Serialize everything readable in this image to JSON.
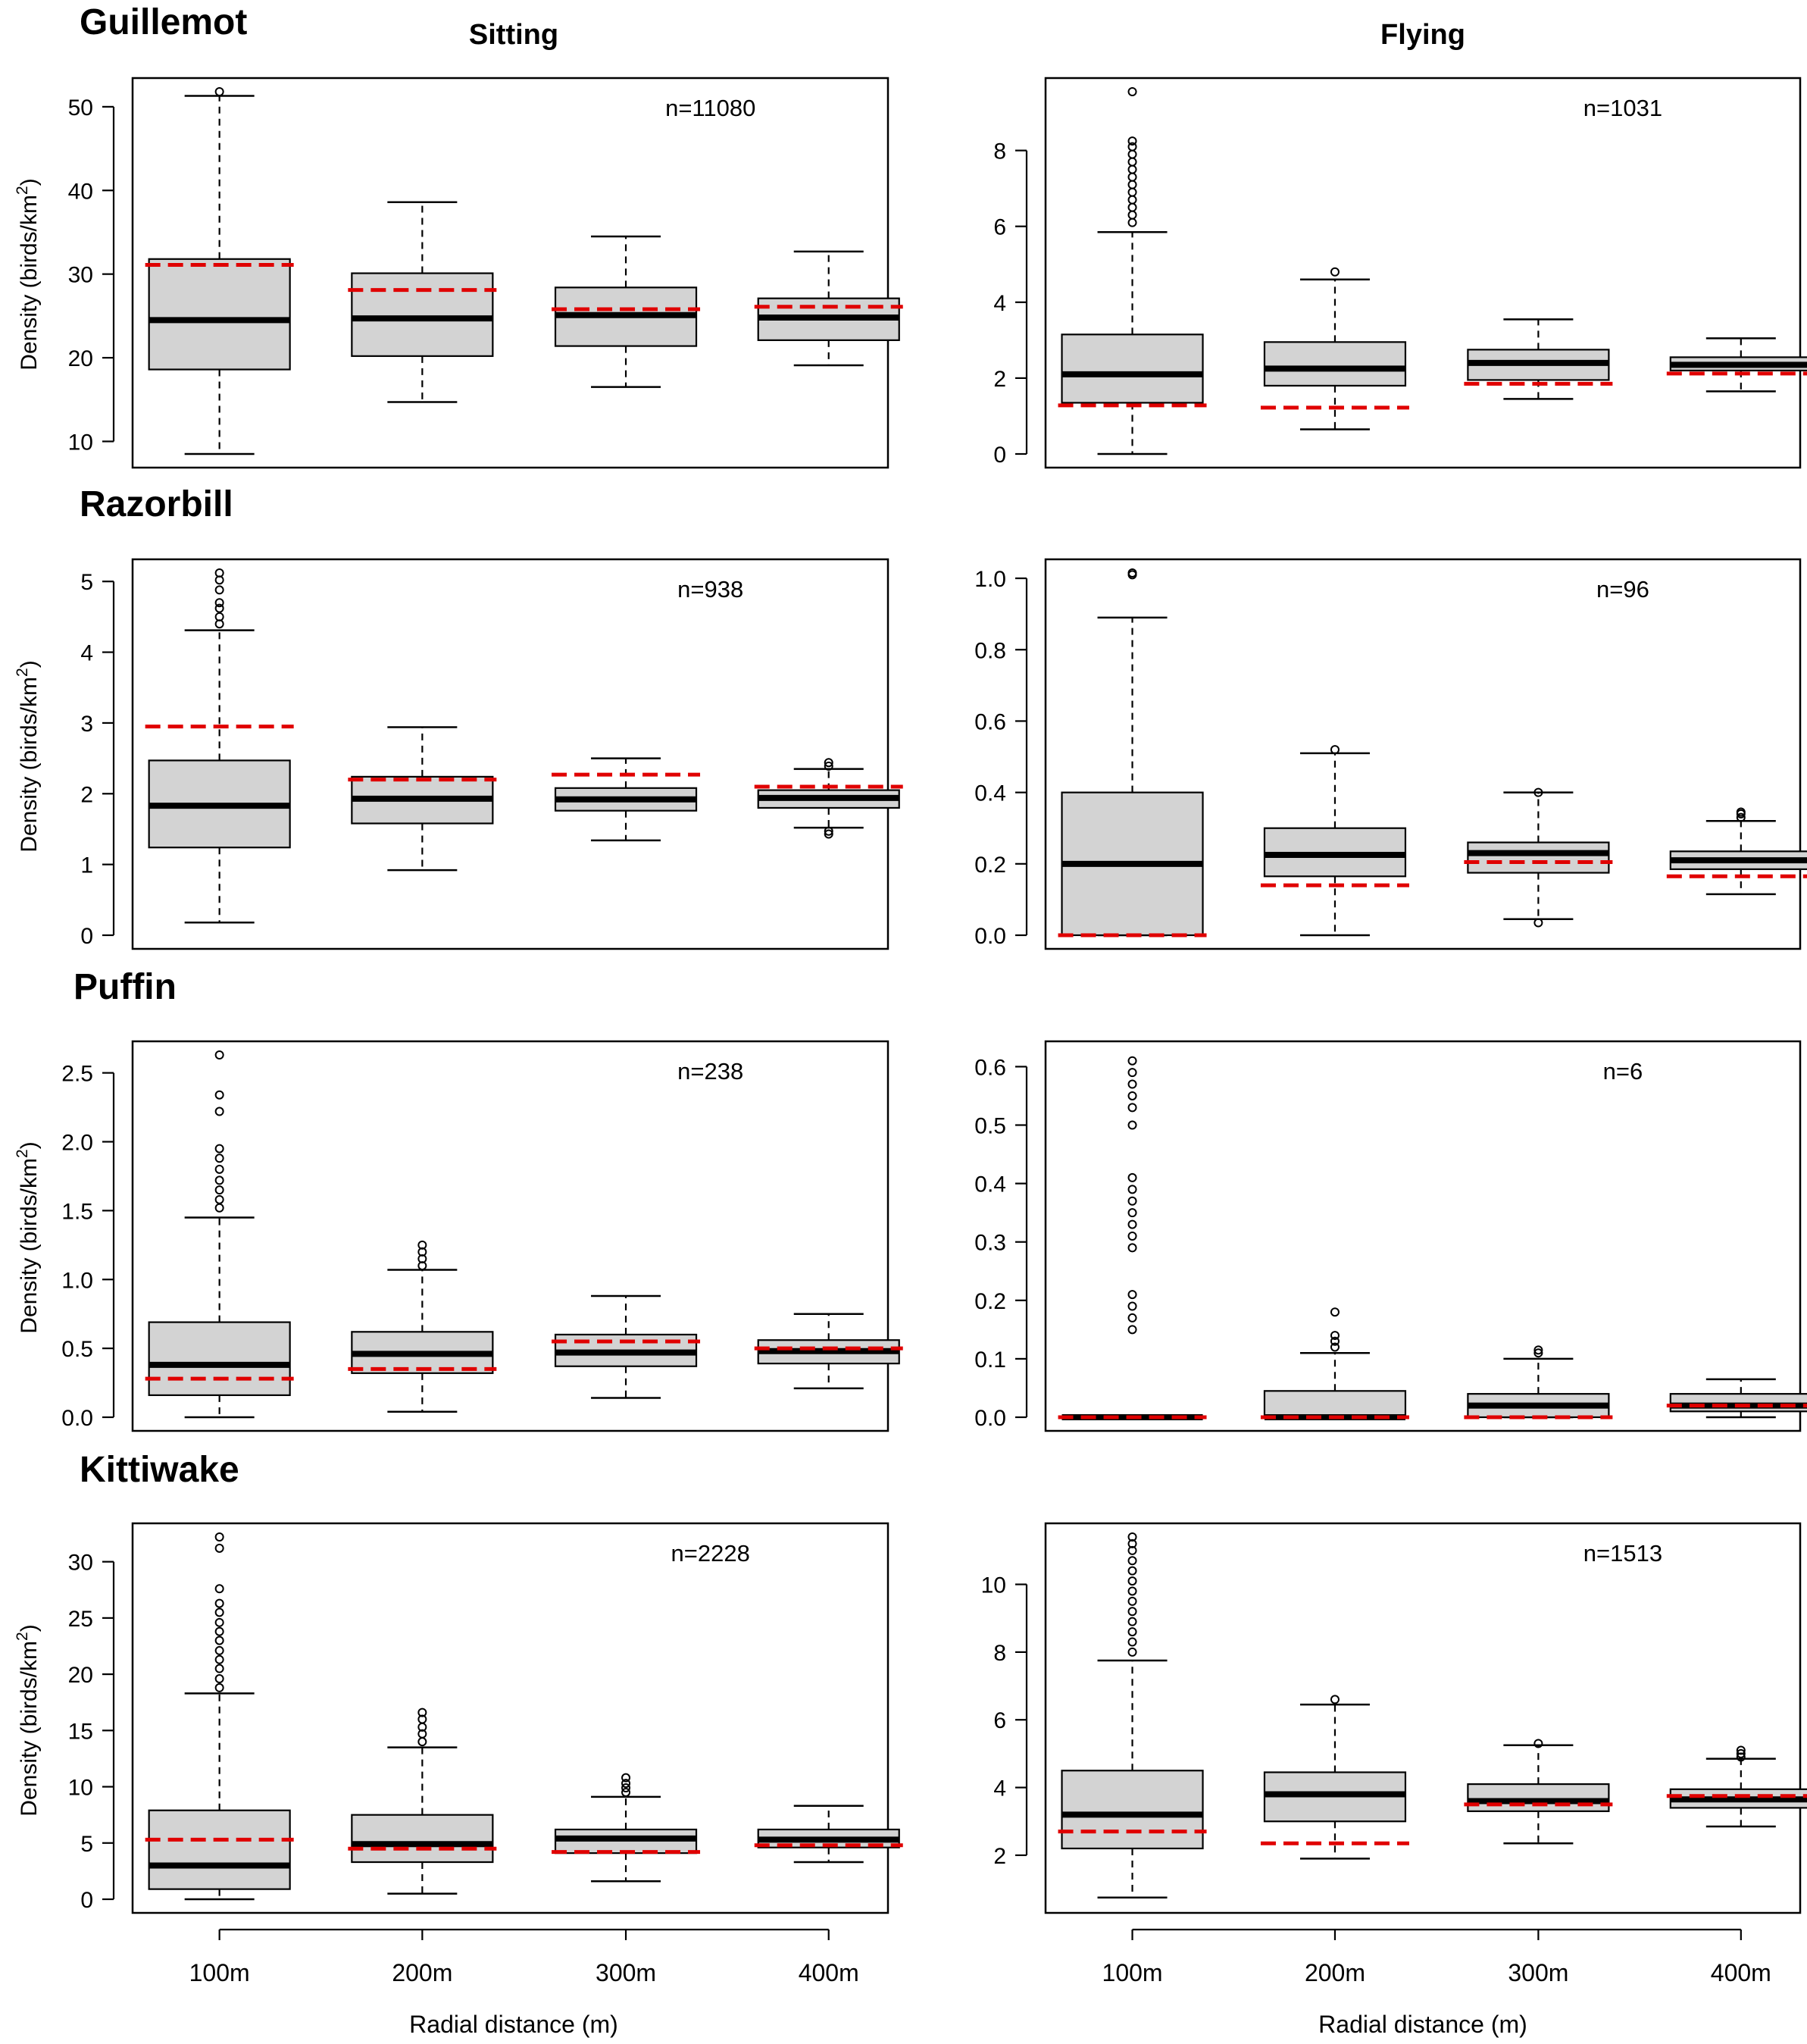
{
  "column_headers": [
    "Sitting",
    "Flying"
  ],
  "species_titles": [
    "Guillemot",
    "Razorbill",
    "Puffin",
    "Kittiwake"
  ],
  "ylabel_main": "Density (birds/km",
  "ylabel_sup": "2",
  "ylabel_end": ")",
  "xlabel": "Radial distance (m)",
  "colors": {
    "box_fill": "#d3d3d3",
    "reference_line": "#e00000",
    "stroke": "#000000"
  },
  "chart_data": [
    {
      "type": "box",
      "species": "Guillemot",
      "behaviour": "Sitting",
      "n_label": "n=11080",
      "categories": [
        "100m",
        "200m",
        "300m",
        "400m"
      ],
      "ylim": [
        8.5,
        51.8
      ],
      "yticks": [
        10,
        20,
        30,
        40,
        50
      ],
      "boxes": [
        {
          "whisker_low": 8.5,
          "q1": 18.6,
          "median": 24.5,
          "q3": 31.8,
          "whisker_high": 51.3,
          "outliers": [
            51.8
          ]
        },
        {
          "whisker_low": 14.7,
          "q1": 20.2,
          "median": 24.7,
          "q3": 30.1,
          "whisker_high": 38.6,
          "outliers": []
        },
        {
          "whisker_low": 16.5,
          "q1": 21.4,
          "median": 25.1,
          "q3": 28.4,
          "whisker_high": 34.5,
          "outliers": []
        },
        {
          "whisker_low": 19.1,
          "q1": 22.1,
          "median": 24.8,
          "q3": 27.1,
          "whisker_high": 32.7,
          "outliers": []
        }
      ],
      "reference_values": [
        31.1,
        28.1,
        25.8,
        26.1
      ]
    },
    {
      "type": "box",
      "species": "Guillemot",
      "behaviour": "Flying",
      "n_label": "n=1031",
      "categories": [
        "100m",
        "200m",
        "300m",
        "400m"
      ],
      "ylim": [
        0,
        9.55
      ],
      "yticks": [
        0,
        2,
        4,
        6,
        8
      ],
      "boxes": [
        {
          "whisker_low": 0.0,
          "q1": 1.35,
          "median": 2.1,
          "q3": 3.15,
          "whisker_high": 5.85,
          "outliers": [
            6.1,
            6.3,
            6.5,
            6.7,
            6.9,
            7.1,
            7.3,
            7.5,
            7.7,
            7.9,
            8.1,
            8.25,
            9.55
          ]
        },
        {
          "whisker_low": 0.65,
          "q1": 1.8,
          "median": 2.25,
          "q3": 2.95,
          "whisker_high": 4.6,
          "outliers": [
            4.8
          ]
        },
        {
          "whisker_low": 1.45,
          "q1": 1.95,
          "median": 2.4,
          "q3": 2.75,
          "whisker_high": 3.55,
          "outliers": []
        },
        {
          "whisker_low": 1.65,
          "q1": 2.2,
          "median": 2.35,
          "q3": 2.55,
          "whisker_high": 3.05,
          "outliers": []
        }
      ],
      "reference_values": [
        1.28,
        1.22,
        1.85,
        2.12
      ]
    },
    {
      "type": "box",
      "species": "Razorbill",
      "behaviour": "Sitting",
      "n_label": "n=938",
      "categories": [
        "100m",
        "200m",
        "300m",
        "400m"
      ],
      "ylim": [
        0,
        5.12
      ],
      "yticks": [
        0,
        1,
        2,
        3,
        4,
        5
      ],
      "boxes": [
        {
          "whisker_low": 0.18,
          "q1": 1.24,
          "median": 1.83,
          "q3": 2.47,
          "whisker_high": 4.31,
          "outliers": [
            4.4,
            4.5,
            4.62,
            4.7,
            4.88,
            5.02,
            5.12
          ]
        },
        {
          "whisker_low": 0.92,
          "q1": 1.58,
          "median": 1.93,
          "q3": 2.24,
          "whisker_high": 2.94,
          "outliers": []
        },
        {
          "whisker_low": 1.34,
          "q1": 1.76,
          "median": 1.92,
          "q3": 2.08,
          "whisker_high": 2.5,
          "outliers": []
        },
        {
          "whisker_low": 1.52,
          "q1": 1.8,
          "median": 1.94,
          "q3": 2.05,
          "whisker_high": 2.35,
          "outliers": [
            1.43,
            1.47,
            2.39,
            2.44
          ]
        }
      ],
      "reference_values": [
        2.95,
        2.2,
        2.27,
        2.1
      ]
    },
    {
      "type": "box",
      "species": "Razorbill",
      "behaviour": "Flying",
      "n_label": "n=96",
      "categories": [
        "100m",
        "200m",
        "300m",
        "400m"
      ],
      "ylim": [
        0,
        1.015
      ],
      "yticks": [
        0.0,
        0.2,
        0.4,
        0.6,
        0.8,
        1.0
      ],
      "ytick_labels": [
        "0.0",
        "0.2",
        "0.4",
        "0.6",
        "0.8",
        "1.0"
      ],
      "boxes": [
        {
          "whisker_low": 0.0,
          "q1": 0.0,
          "median": 0.2,
          "q3": 0.4,
          "whisker_high": 0.89,
          "outliers": [
            1.01,
            1.015
          ]
        },
        {
          "whisker_low": 0.0,
          "q1": 0.165,
          "median": 0.225,
          "q3": 0.3,
          "whisker_high": 0.51,
          "outliers": [
            0.52
          ]
        },
        {
          "whisker_low": 0.045,
          "q1": 0.175,
          "median": 0.23,
          "q3": 0.26,
          "whisker_high": 0.4,
          "outliers": [
            0.035,
            0.4
          ]
        },
        {
          "whisker_low": 0.115,
          "q1": 0.185,
          "median": 0.21,
          "q3": 0.235,
          "whisker_high": 0.32,
          "outliers": [
            0.33,
            0.34,
            0.345
          ]
        }
      ],
      "reference_values": [
        0.0,
        0.14,
        0.205,
        0.165
      ]
    },
    {
      "type": "box",
      "species": "Puffin",
      "behaviour": "Sitting",
      "n_label": "n=238",
      "categories": [
        "100m",
        "200m",
        "300m",
        "400m"
      ],
      "ylim": [
        0,
        2.63
      ],
      "yticks": [
        0.0,
        0.5,
        1.0,
        1.5,
        2.0,
        2.5
      ],
      "ytick_labels": [
        "0.0",
        "0.5",
        "1.0",
        "1.5",
        "2.0",
        "2.5"
      ],
      "boxes": [
        {
          "whisker_low": 0.0,
          "q1": 0.16,
          "median": 0.38,
          "q3": 0.69,
          "whisker_high": 1.45,
          "outliers": [
            1.52,
            1.58,
            1.65,
            1.72,
            1.8,
            1.88,
            1.95,
            2.22,
            2.34,
            2.63
          ]
        },
        {
          "whisker_low": 0.04,
          "q1": 0.32,
          "median": 0.46,
          "q3": 0.62,
          "whisker_high": 1.07,
          "outliers": [
            1.1,
            1.15,
            1.2,
            1.25
          ]
        },
        {
          "whisker_low": 0.14,
          "q1": 0.37,
          "median": 0.47,
          "q3": 0.6,
          "whisker_high": 0.88,
          "outliers": []
        },
        {
          "whisker_low": 0.21,
          "q1": 0.39,
          "median": 0.48,
          "q3": 0.56,
          "whisker_high": 0.75,
          "outliers": []
        }
      ],
      "reference_values": [
        0.28,
        0.35,
        0.55,
        0.5
      ]
    },
    {
      "type": "box",
      "species": "Puffin",
      "behaviour": "Flying",
      "n_label": "n=6",
      "categories": [
        "100m",
        "200m",
        "300m",
        "400m"
      ],
      "ylim": [
        0,
        0.62
      ],
      "yticks": [
        0.0,
        0.1,
        0.2,
        0.3,
        0.4,
        0.5,
        0.6
      ],
      "ytick_labels": [
        "0.0",
        "0.1",
        "0.2",
        "0.3",
        "0.4",
        "0.5",
        "0.6"
      ],
      "boxes": [
        {
          "whisker_low": 0.0,
          "q1": 0.0,
          "median": 0.0,
          "q3": 0.0,
          "whisker_high": 0.0,
          "outliers": [
            0.15,
            0.17,
            0.19,
            0.21,
            0.29,
            0.31,
            0.33,
            0.35,
            0.37,
            0.39,
            0.41,
            0.5,
            0.53,
            0.55,
            0.57,
            0.59,
            0.61
          ]
        },
        {
          "whisker_low": 0.0,
          "q1": 0.0,
          "median": 0.0,
          "q3": 0.045,
          "whisker_high": 0.11,
          "outliers": [
            0.12,
            0.13,
            0.14,
            0.18
          ]
        },
        {
          "whisker_low": 0.0,
          "q1": 0.0,
          "median": 0.02,
          "q3": 0.04,
          "whisker_high": 0.1,
          "outliers": [
            0.11,
            0.115
          ]
        },
        {
          "whisker_low": 0.0,
          "q1": 0.01,
          "median": 0.02,
          "q3": 0.04,
          "whisker_high": 0.065,
          "outliers": []
        }
      ],
      "reference_values": [
        0.0,
        0.0,
        0.0,
        0.02
      ]
    },
    {
      "type": "box",
      "species": "Kittiwake",
      "behaviour": "Sitting",
      "n_label": "n=2228",
      "categories": [
        "100m",
        "200m",
        "300m",
        "400m"
      ],
      "ylim": [
        0,
        32.2
      ],
      "yticks": [
        0,
        5,
        10,
        15,
        20,
        25,
        30
      ],
      "boxes": [
        {
          "whisker_low": 0.0,
          "q1": 0.9,
          "median": 3.0,
          "q3": 7.9,
          "whisker_high": 18.3,
          "outliers": [
            18.8,
            19.6,
            20.5,
            21.3,
            22.1,
            23.0,
            23.8,
            24.6,
            25.5,
            26.3,
            27.6,
            31.2,
            32.2
          ]
        },
        {
          "whisker_low": 0.5,
          "q1": 3.3,
          "median": 4.9,
          "q3": 7.5,
          "whisker_high": 13.5,
          "outliers": [
            14.0,
            14.7,
            15.3,
            16.0,
            16.6
          ]
        },
        {
          "whisker_low": 1.6,
          "q1": 4.1,
          "median": 5.4,
          "q3": 6.2,
          "whisker_high": 9.1,
          "outliers": [
            9.5,
            9.9,
            10.3,
            10.8
          ]
        },
        {
          "whisker_low": 3.3,
          "q1": 4.6,
          "median": 5.3,
          "q3": 6.2,
          "whisker_high": 8.3,
          "outliers": []
        }
      ],
      "reference_values": [
        5.3,
        4.5,
        4.2,
        4.8
      ]
    },
    {
      "type": "box",
      "species": "Kittiwake",
      "behaviour": "Flying",
      "n_label": "n=1513",
      "categories": [
        "100m",
        "200m",
        "300m",
        "400m"
      ],
      "ylim": [
        0.7,
        11.4
      ],
      "yticks": [
        2,
        4,
        6,
        8,
        10
      ],
      "boxes": [
        {
          "whisker_low": 0.75,
          "q1": 2.2,
          "median": 3.2,
          "q3": 4.5,
          "whisker_high": 7.75,
          "outliers": [
            8.0,
            8.3,
            8.6,
            8.9,
            9.2,
            9.5,
            9.8,
            10.1,
            10.4,
            10.7,
            11.0,
            11.2,
            11.4
          ]
        },
        {
          "whisker_low": 1.9,
          "q1": 3.0,
          "median": 3.8,
          "q3": 4.45,
          "whisker_high": 6.45,
          "outliers": [
            6.6
          ]
        },
        {
          "whisker_low": 2.35,
          "q1": 3.3,
          "median": 3.6,
          "q3": 4.1,
          "whisker_high": 5.25,
          "outliers": [
            5.3
          ]
        },
        {
          "whisker_low": 2.85,
          "q1": 3.4,
          "median": 3.65,
          "q3": 3.95,
          "whisker_high": 4.85,
          "outliers": [
            4.9,
            5.0,
            5.1
          ]
        }
      ],
      "reference_values": [
        2.7,
        2.35,
        3.5,
        3.75
      ]
    }
  ]
}
